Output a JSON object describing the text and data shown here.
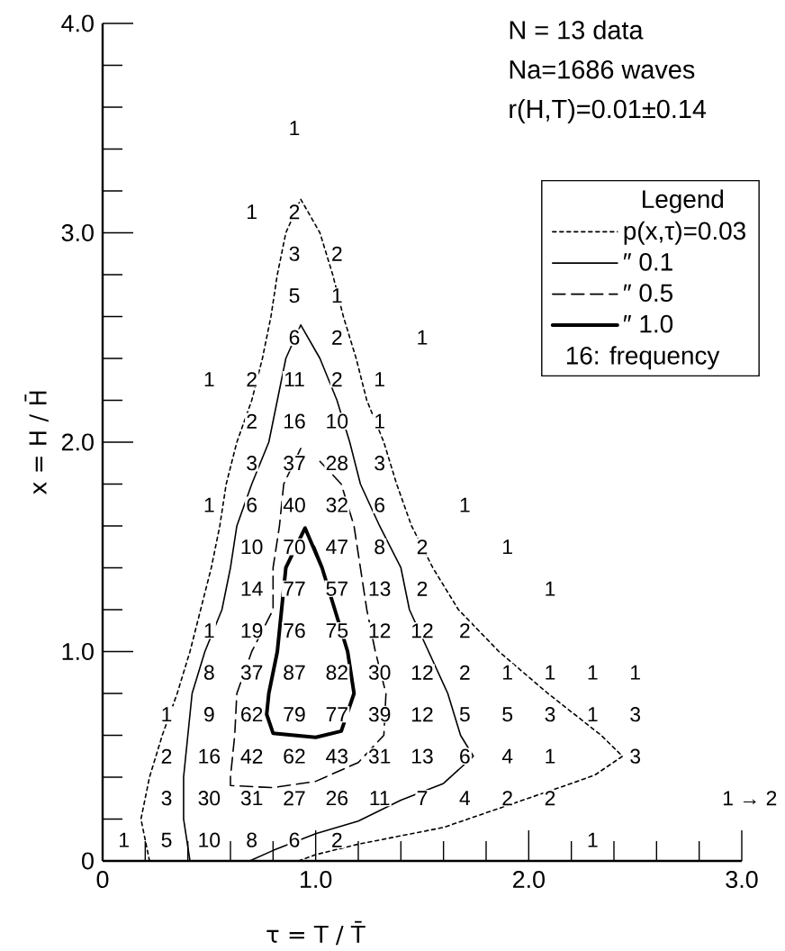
{
  "chart_data": {
    "type": "line",
    "xlabel": "τ = T / T̄",
    "ylabel": "x = H / H̄",
    "xlim": [
      0,
      3
    ],
    "ylim": [
      0,
      4
    ],
    "xticks": [
      0,
      {
        "value": 0.2,
        "label": null
      },
      {
        "value": 0.4,
        "label": null
      },
      {
        "value": 0.6,
        "label": null
      },
      {
        "value": 0.8,
        "label": null
      },
      {
        "value": 1,
        "label": "1.0"
      },
      {
        "value": 1.2,
        "label": null
      },
      {
        "value": 1.4,
        "label": null
      },
      {
        "value": 1.6,
        "label": null
      },
      {
        "value": 1.8,
        "label": null
      },
      {
        "value": 2,
        "label": "2.0"
      },
      {
        "value": 2.2,
        "label": null
      },
      {
        "value": 2.4,
        "label": null
      },
      {
        "value": 2.6,
        "label": null
      },
      {
        "value": 2.8,
        "label": null
      },
      {
        "value": 3,
        "label": "3.0"
      }
    ],
    "yticks": [
      0,
      {
        "value": 0.2,
        "label": null
      },
      {
        "value": 0.4,
        "label": null
      },
      {
        "value": 0.6,
        "label": null
      },
      {
        "value": 0.8,
        "label": null
      },
      {
        "value": 1,
        "label": "1.0"
      },
      {
        "value": 1.2,
        "label": null
      },
      {
        "value": 1.4,
        "label": null
      },
      {
        "value": 1.6,
        "label": null
      },
      {
        "value": 1.8,
        "label": null
      },
      {
        "value": 2,
        "label": "2.0"
      },
      {
        "value": 2.2,
        "label": null
      },
      {
        "value": 2.4,
        "label": null
      },
      {
        "value": 2.6,
        "label": null
      },
      {
        "value": 2.8,
        "label": null
      },
      {
        "value": 3,
        "label": "3.0"
      },
      {
        "value": 3.2,
        "label": null
      },
      {
        "value": 3.4,
        "label": null
      },
      {
        "value": 3.6,
        "label": null
      },
      {
        "value": 3.8,
        "label": null
      },
      {
        "value": 4,
        "label": "4.0"
      }
    ],
    "legend": "top right",
    "legend_title": "Legend",
    "series": [
      {
        "name": "p(x,τ)=0.03",
        "color": "#000000",
        "line_style": "dotted",
        "x": [
          0.22,
          0.18,
          0.22,
          0.28,
          0.35,
          0.41,
          0.46,
          0.51,
          0.55,
          0.58,
          0.63,
          0.7,
          0.75,
          0.79,
          0.82,
          0.86,
          0.93,
          1.02,
          1.08,
          1.13,
          1.19,
          1.24,
          1.32,
          1.38,
          1.45,
          1.55,
          1.67,
          1.86,
          2.09,
          2.34,
          2.44,
          2.31,
          2.2,
          2.0,
          1.8,
          1.6,
          1.4,
          1.2,
          1.0,
          0.92
        ],
        "values": [
          0,
          0.2,
          0.4,
          0.6,
          0.8,
          1.0,
          1.2,
          1.4,
          1.6,
          1.8,
          2.0,
          2.2,
          2.4,
          2.6,
          2.8,
          3.0,
          3.16,
          3.0,
          2.8,
          2.6,
          2.4,
          2.2,
          2.0,
          1.8,
          1.6,
          1.4,
          1.2,
          1.0,
          0.8,
          0.6,
          0.5,
          0.41,
          0.37,
          0.3,
          0.23,
          0.16,
          0.12,
          0.08,
          0.03,
          0
        ]
      },
      {
        "name": "″ 0.1",
        "color": "#000000",
        "line_style": "solid",
        "x": [
          0.41,
          0.38,
          0.38,
          0.4,
          0.42,
          0.48,
          0.56,
          0.6,
          0.63,
          0.7,
          0.78,
          0.82,
          0.86,
          0.93,
          1.02,
          1.1,
          1.16,
          1.21,
          1.3,
          1.4,
          1.44,
          1.53,
          1.62,
          1.68,
          1.74,
          1.6,
          1.4,
          1.2,
          1.0,
          0.8,
          0.69
        ],
        "values": [
          0,
          0.2,
          0.4,
          0.6,
          0.8,
          1.0,
          1.2,
          1.4,
          1.6,
          1.8,
          2.0,
          2.2,
          2.4,
          2.56,
          2.4,
          2.2,
          2.0,
          1.8,
          1.6,
          1.4,
          1.2,
          1.0,
          0.8,
          0.6,
          0.5,
          0.37,
          0.29,
          0.19,
          0.13,
          0.05,
          0
        ]
      },
      {
        "name": "″ 0.5",
        "color": "#000000",
        "line_style": "dashed",
        "x": [
          0.93,
          0.85,
          0.83,
          0.8,
          0.8,
          0.7,
          0.63,
          0.62,
          0.6,
          0.6,
          0.8,
          1.0,
          1.2,
          1.32,
          1.33,
          1.28,
          1.24,
          1.21,
          1.18,
          1.12,
          1.0
        ],
        "values": [
          1.97,
          1.8,
          1.6,
          1.4,
          1.2,
          1.0,
          0.8,
          0.6,
          0.4,
          0.36,
          0.35,
          0.38,
          0.47,
          0.6,
          0.8,
          1.0,
          1.2,
          1.4,
          1.6,
          1.8,
          1.93
        ]
      },
      {
        "name": "″ 1.0",
        "color": "#000000",
        "line_style": "solid",
        "x": [
          1.03,
          0.95,
          0.86,
          0.84,
          0.82,
          0.78,
          0.77,
          0.8,
          1.0,
          1.12,
          1.18,
          1.15,
          1.09,
          1.03,
          0.99
        ],
        "values": [
          1.4,
          1.59,
          1.4,
          1.2,
          1.0,
          0.8,
          0.7,
          0.61,
          0.59,
          0.62,
          0.8,
          1.0,
          1.2,
          1.4,
          1.5
        ]
      }
    ],
    "annotations": [
      "N = 13 data",
      "Na=1686 waves",
      "r(H,T)=0.01±0.14",
      {
        "text": "1",
        "x": 0.1,
        "y": 0.1
      },
      {
        "text": "5",
        "x": 0.3,
        "y": 0.1
      },
      {
        "text": "10",
        "x": 0.5,
        "y": 0.1
      },
      {
        "text": "8",
        "x": 0.7,
        "y": 0.1
      },
      {
        "text": "6",
        "x": 0.9,
        "y": 0.1
      },
      {
        "text": "2",
        "x": 1.1,
        "y": 0.1
      },
      {
        "text": "1",
        "x": 2.3,
        "y": 0.1
      },
      {
        "text": "3",
        "x": 0.3,
        "y": 0.3
      },
      {
        "text": "30",
        "x": 0.5,
        "y": 0.3
      },
      {
        "text": "31",
        "x": 0.7,
        "y": 0.3
      },
      {
        "text": "27",
        "x": 0.9,
        "y": 0.3
      },
      {
        "text": "26",
        "x": 1.1,
        "y": 0.3
      },
      {
        "text": "11",
        "x": 1.3,
        "y": 0.3
      },
      {
        "text": "7",
        "x": 1.5,
        "y": 0.3
      },
      {
        "text": "4",
        "x": 1.7,
        "y": 0.3
      },
      {
        "text": "2",
        "x": 1.9,
        "y": 0.3
      },
      {
        "text": "2",
        "x": 2.1,
        "y": 0.3
      },
      "1 → 2",
      {
        "text": "2",
        "x": 0.3,
        "y": 0.5
      },
      {
        "text": "16",
        "x": 0.5,
        "y": 0.5
      },
      {
        "text": "42",
        "x": 0.7,
        "y": 0.5
      },
      {
        "text": "62",
        "x": 0.9,
        "y": 0.5
      },
      {
        "text": "43",
        "x": 1.1,
        "y": 0.5
      },
      {
        "text": "31",
        "x": 1.3,
        "y": 0.5
      },
      {
        "text": "13",
        "x": 1.5,
        "y": 0.5
      },
      {
        "text": "6",
        "x": 1.7,
        "y": 0.5
      },
      {
        "text": "4",
        "x": 1.9,
        "y": 0.5
      },
      {
        "text": "1",
        "x": 2.1,
        "y": 0.5
      },
      {
        "text": "3",
        "x": 2.5,
        "y": 0.5
      },
      {
        "text": "1",
        "x": 0.3,
        "y": 0.7
      },
      {
        "text": "9",
        "x": 0.5,
        "y": 0.7
      },
      {
        "text": "62",
        "x": 0.7,
        "y": 0.7
      },
      {
        "text": "79",
        "x": 0.9,
        "y": 0.7
      },
      {
        "text": "77",
        "x": 1.1,
        "y": 0.7
      },
      {
        "text": "39",
        "x": 1.3,
        "y": 0.7
      },
      {
        "text": "12",
        "x": 1.5,
        "y": 0.7
      },
      {
        "text": "5",
        "x": 1.7,
        "y": 0.7
      },
      {
        "text": "5",
        "x": 1.9,
        "y": 0.7
      },
      {
        "text": "3",
        "x": 2.1,
        "y": 0.7
      },
      {
        "text": "1",
        "x": 2.3,
        "y": 0.7
      },
      {
        "text": "3",
        "x": 2.5,
        "y": 0.7
      },
      {
        "text": "8",
        "x": 0.5,
        "y": 0.9
      },
      {
        "text": "37",
        "x": 0.7,
        "y": 0.9
      },
      {
        "text": "87",
        "x": 0.9,
        "y": 0.9
      },
      {
        "text": "82",
        "x": 1.1,
        "y": 0.9
      },
      {
        "text": "30",
        "x": 1.3,
        "y": 0.9
      },
      {
        "text": "12",
        "x": 1.5,
        "y": 0.9
      },
      {
        "text": "2",
        "x": 1.7,
        "y": 0.9
      },
      {
        "text": "1",
        "x": 1.9,
        "y": 0.9
      },
      {
        "text": "1",
        "x": 2.1,
        "y": 0.9
      },
      {
        "text": "1",
        "x": 2.3,
        "y": 0.9
      },
      {
        "text": "1",
        "x": 2.5,
        "y": 0.9
      },
      {
        "text": "1",
        "x": 0.5,
        "y": 1.1
      },
      {
        "text": "19",
        "x": 0.7,
        "y": 1.1
      },
      {
        "text": "76",
        "x": 0.9,
        "y": 1.1
      },
      {
        "text": "75",
        "x": 1.1,
        "y": 1.1
      },
      {
        "text": "12",
        "x": 1.3,
        "y": 1.1
      },
      {
        "text": "12",
        "x": 1.5,
        "y": 1.1
      },
      {
        "text": "2",
        "x": 1.7,
        "y": 1.1
      },
      {
        "text": "14",
        "x": 0.7,
        "y": 1.3
      },
      {
        "text": "77",
        "x": 0.9,
        "y": 1.3
      },
      {
        "text": "57",
        "x": 1.1,
        "y": 1.3
      },
      {
        "text": "13",
        "x": 1.3,
        "y": 1.3
      },
      {
        "text": "2",
        "x": 1.5,
        "y": 1.3
      },
      {
        "text": "1",
        "x": 2.1,
        "y": 1.3
      },
      {
        "text": "10",
        "x": 0.7,
        "y": 1.5
      },
      {
        "text": "70",
        "x": 0.9,
        "y": 1.5
      },
      {
        "text": "47",
        "x": 1.1,
        "y": 1.5
      },
      {
        "text": "8",
        "x": 1.3,
        "y": 1.5
      },
      {
        "text": "2",
        "x": 1.5,
        "y": 1.5
      },
      {
        "text": "1",
        "x": 1.9,
        "y": 1.5
      },
      {
        "text": "1",
        "x": 0.5,
        "y": 1.7
      },
      {
        "text": "6",
        "x": 0.7,
        "y": 1.7
      },
      {
        "text": "40",
        "x": 0.9,
        "y": 1.7
      },
      {
        "text": "32",
        "x": 1.1,
        "y": 1.7
      },
      {
        "text": "6",
        "x": 1.3,
        "y": 1.7
      },
      {
        "text": "1",
        "x": 1.7,
        "y": 1.7
      },
      {
        "text": "3",
        "x": 0.7,
        "y": 1.9
      },
      {
        "text": "37",
        "x": 0.9,
        "y": 1.9
      },
      {
        "text": "28",
        "x": 1.1,
        "y": 1.9
      },
      {
        "text": "3",
        "x": 1.3,
        "y": 1.9
      },
      {
        "text": "2",
        "x": 0.7,
        "y": 2.1
      },
      {
        "text": "16",
        "x": 0.9,
        "y": 2.1
      },
      {
        "text": "10",
        "x": 1.1,
        "y": 2.1
      },
      {
        "text": "1",
        "x": 1.3,
        "y": 2.1
      },
      {
        "text": "1",
        "x": 0.5,
        "y": 2.3
      },
      {
        "text": "2",
        "x": 0.7,
        "y": 2.3
      },
      {
        "text": "11",
        "x": 0.9,
        "y": 2.3
      },
      {
        "text": "2",
        "x": 1.1,
        "y": 2.3
      },
      {
        "text": "1",
        "x": 1.3,
        "y": 2.3
      },
      {
        "text": "6",
        "x": 0.9,
        "y": 2.5
      },
      {
        "text": "2",
        "x": 1.1,
        "y": 2.5
      },
      {
        "text": "1",
        "x": 1.5,
        "y": 2.5
      },
      {
        "text": "5",
        "x": 0.9,
        "y": 2.7
      },
      {
        "text": "1",
        "x": 1.1,
        "y": 2.7
      },
      {
        "text": "3",
        "x": 0.9,
        "y": 2.9
      },
      {
        "text": "2",
        "x": 1.1,
        "y": 2.9
      },
      {
        "text": "1",
        "x": 0.7,
        "y": 3.1
      },
      {
        "text": "2",
        "x": 0.9,
        "y": 3.1
      },
      {
        "text": "1",
        "x": 0.9,
        "y": 3.5
      },
      "16: frequency"
    ]
  }
}
